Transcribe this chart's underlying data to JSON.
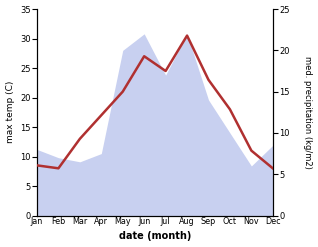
{
  "months": [
    "Jan",
    "Feb",
    "Mar",
    "Apr",
    "May",
    "Jun",
    "Jul",
    "Aug",
    "Sep",
    "Oct",
    "Nov",
    "Dec"
  ],
  "temperature": [
    8.5,
    8.0,
    13.0,
    17.0,
    21.0,
    27.0,
    24.5,
    30.5,
    23.0,
    18.0,
    11.0,
    8.0
  ],
  "precipitation": [
    8.0,
    7.0,
    6.5,
    7.5,
    20.0,
    22.0,
    17.0,
    22.0,
    14.0,
    10.0,
    6.0,
    8.5
  ],
  "temp_color": "#b03030",
  "precip_fill_color": "#c8d0f0",
  "ylabel_left": "max temp (C)",
  "ylabel_right": "med. precipitation (kg/m2)",
  "xlabel": "date (month)",
  "ylim_left": [
    0,
    35
  ],
  "ylim_right": [
    0,
    25
  ],
  "yticks_left": [
    0,
    5,
    10,
    15,
    20,
    25,
    30,
    35
  ],
  "yticks_right": [
    0,
    5,
    10,
    15,
    20,
    25
  ],
  "temp_linewidth": 1.8,
  "bg_color": "#ffffff"
}
